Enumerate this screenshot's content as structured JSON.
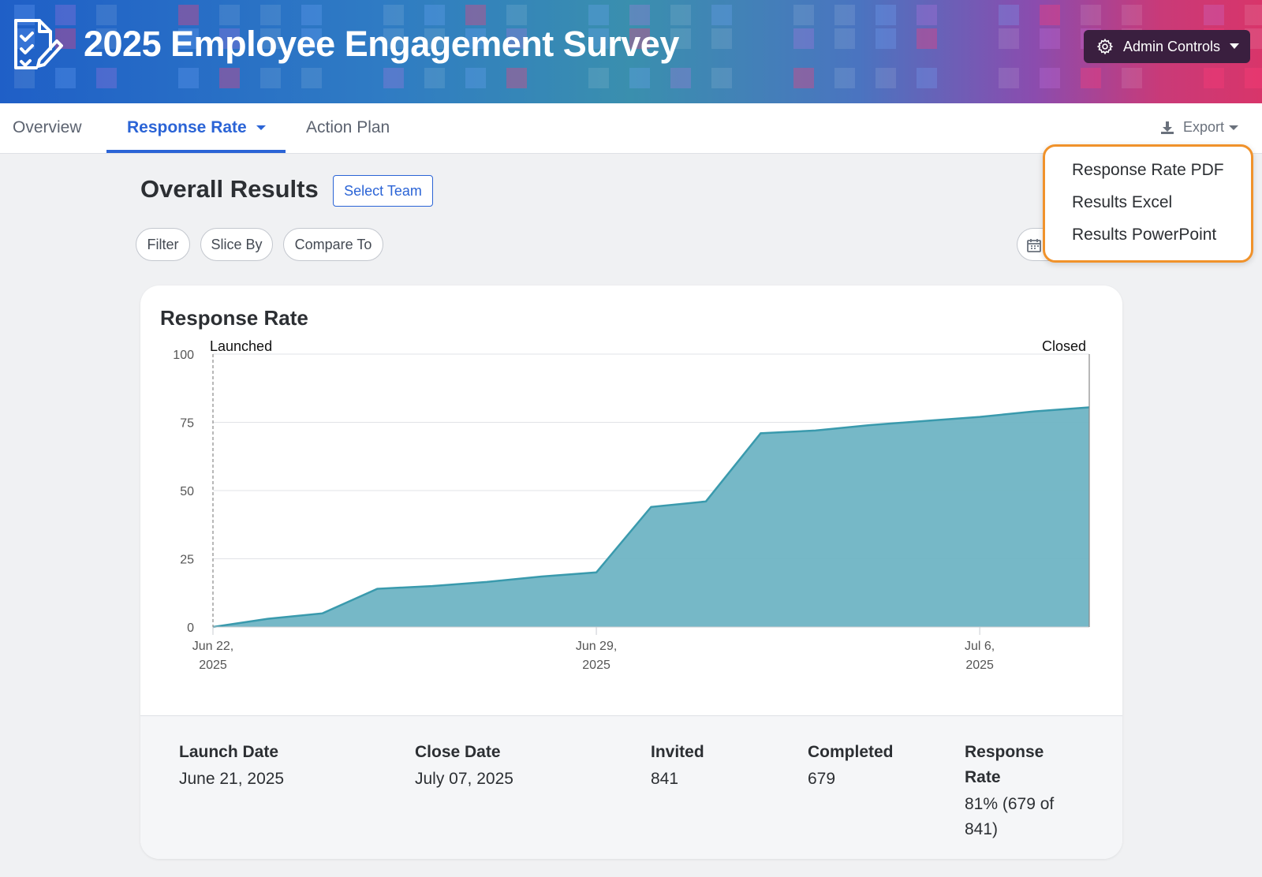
{
  "header": {
    "title": "2025 Employee Engagement Survey",
    "admin_label": "Admin Controls"
  },
  "tabs": [
    {
      "label": "Overview",
      "active": false
    },
    {
      "label": "Response Rate",
      "active": true
    },
    {
      "label": "Action Plan",
      "active": false
    }
  ],
  "export": {
    "label": "Export",
    "menu": [
      "Response Rate PDF",
      "Results Excel",
      "Results PowerPoint"
    ]
  },
  "section": {
    "title": "Overall Results",
    "select_team": "Select Team",
    "filters": [
      "Filter",
      "Slice By",
      "Compare To"
    ]
  },
  "card": {
    "title": "Response Rate",
    "stats": [
      {
        "label": "Launch Date",
        "value": "June 21, 2025"
      },
      {
        "label": "Close Date",
        "value": "July 07, 2025"
      },
      {
        "label": "Invited",
        "value": "841"
      },
      {
        "label": "Completed",
        "value": "679"
      },
      {
        "label": "Response Rate",
        "value": "81% (679 of 841)"
      }
    ]
  },
  "colors": {
    "accent": "#2b64d6",
    "area_fill": "#6fb4c4",
    "area_stroke": "#3a9aad",
    "menu_highlight": "#f0922b",
    "admin_bg": "#3a1f3f"
  },
  "chart_data": {
    "type": "area",
    "title": "Response Rate",
    "xlabel": "",
    "ylabel": "",
    "ylim": [
      0,
      100
    ],
    "y_ticks": [
      0,
      25,
      50,
      75,
      100
    ],
    "x_ticks": [
      {
        "date": "2025-06-22",
        "label_line1": "Jun 22,",
        "label_line2": "2025"
      },
      {
        "date": "2025-06-29",
        "label_line1": "Jun 29,",
        "label_line2": "2025"
      },
      {
        "date": "2025-07-06",
        "label_line1": "Jul 6,",
        "label_line2": "2025"
      }
    ],
    "x_range": [
      "2025-06-22",
      "2025-07-08"
    ],
    "annotations": [
      {
        "text": "Launched",
        "date": "2025-06-22"
      },
      {
        "text": "Closed",
        "date": "2025-07-08"
      }
    ],
    "points": [
      {
        "x": "2025-06-22",
        "y": 0
      },
      {
        "x": "2025-06-23",
        "y": 3
      },
      {
        "x": "2025-06-24",
        "y": 5
      },
      {
        "x": "2025-06-25",
        "y": 14
      },
      {
        "x": "2025-06-26",
        "y": 15
      },
      {
        "x": "2025-06-27",
        "y": 16.5
      },
      {
        "x": "2025-06-28",
        "y": 18.5
      },
      {
        "x": "2025-06-29",
        "y": 20
      },
      {
        "x": "2025-06-30",
        "y": 44
      },
      {
        "x": "2025-07-01",
        "y": 46
      },
      {
        "x": "2025-07-02",
        "y": 71
      },
      {
        "x": "2025-07-03",
        "y": 72
      },
      {
        "x": "2025-07-04",
        "y": 74
      },
      {
        "x": "2025-07-05",
        "y": 75.5
      },
      {
        "x": "2025-07-06",
        "y": 77
      },
      {
        "x": "2025-07-07",
        "y": 79
      },
      {
        "x": "2025-07-08",
        "y": 80.5
      }
    ],
    "grid": true
  }
}
